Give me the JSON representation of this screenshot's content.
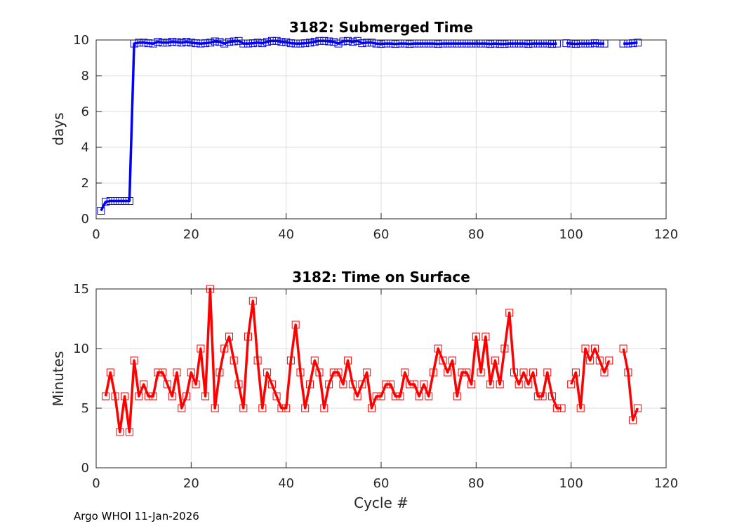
{
  "footer": "Argo WHOI 11-Jan-2026",
  "chart_data": [
    {
      "type": "line",
      "title": "3182: Submerged Time",
      "xlabel": "",
      "ylabel": "days",
      "xlim": [
        0,
        120
      ],
      "ylim": [
        0,
        10
      ],
      "xticks": [
        0,
        20,
        40,
        60,
        80,
        100,
        120
      ],
      "yticks": [
        0,
        2,
        4,
        6,
        8,
        10
      ],
      "color": "#0000ff",
      "marker": "square",
      "grid": true,
      "series": [
        {
          "name": "Submerged Time",
          "x": [
            1,
            2,
            3,
            4,
            5,
            6,
            7,
            8,
            9,
            10,
            11,
            12,
            13,
            14,
            15,
            16,
            17,
            18,
            19,
            20,
            21,
            22,
            23,
            24,
            25,
            26,
            27,
            28,
            29,
            30,
            31,
            32,
            33,
            34,
            35,
            36,
            37,
            38,
            39,
            40,
            41,
            42,
            43,
            44,
            45,
            46,
            47,
            48,
            49,
            50,
            51,
            52,
            53,
            54,
            55,
            56,
            57,
            58,
            59,
            60,
            61,
            62,
            63,
            64,
            65,
            66,
            67,
            68,
            69,
            70,
            71,
            72,
            73,
            74,
            75,
            76,
            77,
            78,
            79,
            80,
            81,
            82,
            83,
            84,
            85,
            86,
            87,
            88,
            89,
            90,
            91,
            92,
            93,
            94,
            95,
            96,
            97,
            null,
            99,
            100,
            101,
            102,
            103,
            104,
            105,
            106,
            107,
            null,
            111,
            112,
            113,
            114
          ],
          "values": [
            0.45,
            0.95,
            1.0,
            1.0,
            1.0,
            1.0,
            1.0,
            9.8,
            9.85,
            9.85,
            9.82,
            9.8,
            9.9,
            9.85,
            9.85,
            9.9,
            9.88,
            9.85,
            9.9,
            9.85,
            9.82,
            9.8,
            9.82,
            9.85,
            9.92,
            9.9,
            9.8,
            9.9,
            9.92,
            9.95,
            9.8,
            9.8,
            9.82,
            9.85,
            9.82,
            9.9,
            9.95,
            9.95,
            9.9,
            9.88,
            9.82,
            9.8,
            9.8,
            9.82,
            9.85,
            9.9,
            9.95,
            9.95,
            9.92,
            9.9,
            9.8,
            9.92,
            9.95,
            9.9,
            9.95,
            9.82,
            9.85,
            9.85,
            9.8,
            9.78,
            9.8,
            9.8,
            9.78,
            9.8,
            9.8,
            9.78,
            9.8,
            9.8,
            9.8,
            9.8,
            9.8,
            9.78,
            9.8,
            9.8,
            9.8,
            9.8,
            9.8,
            9.8,
            9.8,
            9.8,
            9.8,
            9.8,
            9.78,
            9.8,
            9.78,
            9.78,
            9.8,
            9.8,
            9.8,
            9.8,
            9.78,
            9.8,
            9.8,
            9.8,
            9.8,
            9.78,
            9.8,
            null,
            9.82,
            9.8,
            9.78,
            9.8,
            9.8,
            9.8,
            9.82,
            9.8,
            9.8,
            null,
            9.8,
            9.8,
            9.82,
            9.85
          ]
        }
      ]
    },
    {
      "type": "line",
      "title": "3182: Time on Surface",
      "xlabel": "Cycle #",
      "ylabel": "Minutes",
      "xlim": [
        0,
        120
      ],
      "ylim": [
        0,
        15
      ],
      "xticks": [
        0,
        20,
        40,
        60,
        80,
        100,
        120
      ],
      "yticks": [
        0,
        5,
        10,
        15
      ],
      "color": "#ff0000",
      "marker": "square",
      "grid": true,
      "series": [
        {
          "name": "Time on Surface",
          "x": [
            2,
            3,
            4,
            5,
            6,
            7,
            8,
            9,
            10,
            11,
            12,
            13,
            14,
            15,
            16,
            17,
            18,
            19,
            20,
            21,
            22,
            23,
            24,
            25,
            26,
            27,
            28,
            29,
            30,
            31,
            32,
            33,
            34,
            35,
            36,
            37,
            38,
            39,
            40,
            41,
            42,
            43,
            44,
            45,
            46,
            47,
            48,
            49,
            50,
            51,
            52,
            53,
            54,
            55,
            56,
            57,
            58,
            59,
            60,
            61,
            62,
            63,
            64,
            65,
            66,
            67,
            68,
            69,
            70,
            71,
            72,
            73,
            74,
            75,
            76,
            77,
            78,
            79,
            80,
            81,
            82,
            83,
            84,
            85,
            86,
            87,
            88,
            89,
            90,
            91,
            92,
            93,
            94,
            95,
            96,
            97,
            98,
            null,
            100,
            101,
            102,
            103,
            104,
            105,
            106,
            107,
            108,
            null,
            111,
            112,
            113,
            114
          ],
          "values": [
            6,
            8,
            6,
            3,
            6,
            3,
            9,
            6,
            7,
            6,
            6,
            8,
            8,
            7,
            6,
            8,
            5,
            6,
            8,
            7,
            10,
            6,
            15,
            5,
            8,
            10,
            11,
            9,
            7,
            5,
            11,
            14,
            9,
            5,
            8,
            7,
            6,
            5,
            5,
            9,
            12,
            8,
            5,
            7,
            9,
            8,
            5,
            7,
            8,
            8,
            7,
            9,
            7,
            6,
            7,
            8,
            5,
            6,
            6,
            7,
            7,
            6,
            6,
            8,
            7,
            7,
            6,
            7,
            6,
            8,
            10,
            9,
            8,
            9,
            6,
            8,
            8,
            7,
            11,
            8,
            11,
            7,
            9,
            7,
            10,
            13,
            8,
            7,
            8,
            7,
            8,
            6,
            6,
            8,
            6,
            5,
            5,
            null,
            7,
            8,
            5,
            10,
            9,
            10,
            9,
            8,
            9,
            null,
            10,
            8,
            4,
            5
          ]
        }
      ]
    }
  ]
}
